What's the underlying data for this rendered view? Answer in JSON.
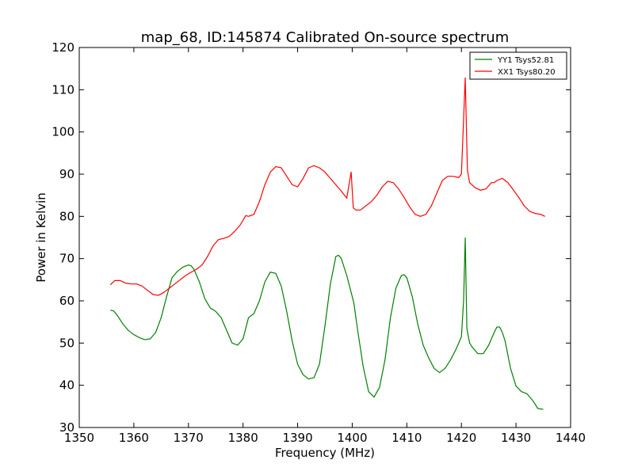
{
  "chart_data": {
    "type": "line",
    "title": "map_68, ID:145874 Calibrated On-source spectrum",
    "xlabel": "Frequency (MHz)",
    "ylabel": "Power in Kelvin",
    "xlim": [
      1350,
      1440
    ],
    "ylim": [
      30,
      120
    ],
    "xticks": [
      1350,
      1360,
      1370,
      1380,
      1390,
      1400,
      1410,
      1420,
      1430,
      1440
    ],
    "yticks": [
      30,
      40,
      50,
      60,
      70,
      80,
      90,
      100,
      110,
      120
    ],
    "legend_position": "top-right",
    "series": [
      {
        "name": "YY1 Tsys52.81",
        "color": "#008000",
        "x": [
          1355.7,
          1356.3,
          1357.0,
          1358.0,
          1359.0,
          1360.0,
          1361.0,
          1362.0,
          1363.0,
          1364.0,
          1365.0,
          1366.0,
          1367.0,
          1368.0,
          1369.0,
          1370.0,
          1370.5,
          1371.0,
          1372.0,
          1373.0,
          1374.0,
          1375.0,
          1376.0,
          1377.0,
          1378.0,
          1379.0,
          1380.0,
          1381.0,
          1382.0,
          1383.0,
          1384.0,
          1385.0,
          1386.0,
          1387.0,
          1388.0,
          1389.0,
          1390.0,
          1391.0,
          1392.0,
          1393.0,
          1394.0,
          1395.0,
          1396.0,
          1397.0,
          1397.5,
          1398.0,
          1399.0,
          1399.8,
          1400.3,
          1401.0,
          1402.0,
          1403.0,
          1404.0,
          1405.0,
          1406.0,
          1407.0,
          1408.0,
          1409.0,
          1409.5,
          1410.0,
          1411.0,
          1412.0,
          1413.0,
          1414.0,
          1415.0,
          1416.0,
          1417.0,
          1418.0,
          1419.0,
          1420.0,
          1420.4,
          1420.7,
          1421.0,
          1421.5,
          1422.0,
          1423.0,
          1424.0,
          1425.0,
          1426.0,
          1426.5,
          1427.0,
          1427.5,
          1428.0,
          1429.0,
          1430.0,
          1431.0,
          1432.0,
          1433.0,
          1434.0,
          1435.0
        ],
        "values": [
          57.8,
          57.6,
          56.5,
          54.5,
          53.0,
          52.0,
          51.3,
          50.8,
          51.0,
          52.5,
          56.0,
          61.0,
          65.5,
          67.0,
          68.0,
          68.5,
          68.3,
          67.5,
          64.5,
          60.5,
          58.3,
          57.5,
          56.0,
          53.0,
          50.0,
          49.5,
          51.0,
          56.0,
          57.0,
          60.0,
          64.5,
          66.8,
          66.5,
          63.5,
          57.5,
          50.5,
          45.0,
          42.5,
          41.5,
          41.8,
          45.0,
          54.0,
          64.0,
          70.5,
          70.8,
          70.0,
          66.0,
          62.0,
          59.5,
          53.0,
          44.5,
          38.5,
          37.2,
          39.5,
          46.0,
          56.0,
          63.0,
          66.0,
          66.2,
          65.5,
          61.0,
          54.5,
          49.5,
          46.5,
          44.0,
          43.0,
          44.0,
          46.0,
          48.5,
          51.5,
          60.0,
          74.9,
          53.5,
          50.0,
          49.0,
          47.5,
          47.5,
          49.5,
          52.5,
          53.8,
          53.8,
          52.5,
          50.5,
          44.0,
          39.8,
          38.5,
          38.0,
          36.5,
          34.5,
          34.3
        ]
      },
      {
        "name": "XX1 Tsys80.20",
        "color": "#ff0000",
        "x": [
          1355.7,
          1356.5,
          1357.5,
          1358.5,
          1359.5,
          1360.5,
          1361.5,
          1362.5,
          1363.5,
          1364.5,
          1365.5,
          1366.5,
          1367.5,
          1368.5,
          1369.5,
          1370.5,
          1371.5,
          1372.5,
          1373.5,
          1374.5,
          1375.5,
          1376.5,
          1377.5,
          1378.5,
          1379.5,
          1380.5,
          1381.0,
          1382.0,
          1383.0,
          1384.0,
          1385.0,
          1386.0,
          1387.0,
          1388.0,
          1389.0,
          1390.0,
          1391.0,
          1392.0,
          1393.0,
          1394.0,
          1395.0,
          1396.0,
          1397.0,
          1398.0,
          1399.0,
          1399.8,
          1400.2,
          1400.7,
          1401.5,
          1402.5,
          1403.5,
          1404.5,
          1405.5,
          1406.5,
          1407.5,
          1408.5,
          1409.5,
          1410.5,
          1411.5,
          1412.5,
          1413.5,
          1414.5,
          1415.5,
          1416.5,
          1417.5,
          1418.5,
          1419.5,
          1420.0,
          1420.4,
          1420.7,
          1421.1,
          1421.5,
          1422.5,
          1423.5,
          1424.5,
          1425.5,
          1426.0,
          1426.5,
          1427.5,
          1428.5,
          1429.5,
          1430.5,
          1431.5,
          1432.5,
          1433.5,
          1434.5,
          1435.3
        ],
        "values": [
          63.8,
          64.8,
          64.8,
          64.2,
          64.0,
          64.0,
          63.5,
          62.5,
          61.5,
          61.3,
          62.0,
          63.0,
          64.0,
          65.0,
          66.0,
          66.8,
          67.5,
          68.5,
          70.5,
          73.0,
          74.5,
          74.8,
          75.3,
          76.5,
          78.0,
          80.2,
          80.0,
          80.5,
          83.5,
          87.5,
          90.5,
          91.8,
          91.5,
          89.5,
          87.5,
          87.0,
          89.0,
          91.5,
          92.0,
          91.5,
          90.5,
          89.0,
          87.5,
          86.0,
          84.3,
          90.5,
          82.0,
          81.5,
          81.5,
          82.5,
          83.5,
          85.0,
          87.0,
          88.3,
          88.0,
          86.5,
          84.5,
          82.3,
          80.5,
          80.0,
          80.5,
          82.5,
          85.5,
          88.5,
          89.5,
          89.5,
          89.2,
          90.0,
          103.0,
          112.8,
          91.0,
          88.0,
          86.8,
          86.2,
          86.5,
          88.0,
          88.0,
          88.5,
          89.0,
          88.0,
          86.3,
          84.5,
          82.5,
          81.2,
          80.7,
          80.5,
          80.0
        ]
      }
    ]
  }
}
